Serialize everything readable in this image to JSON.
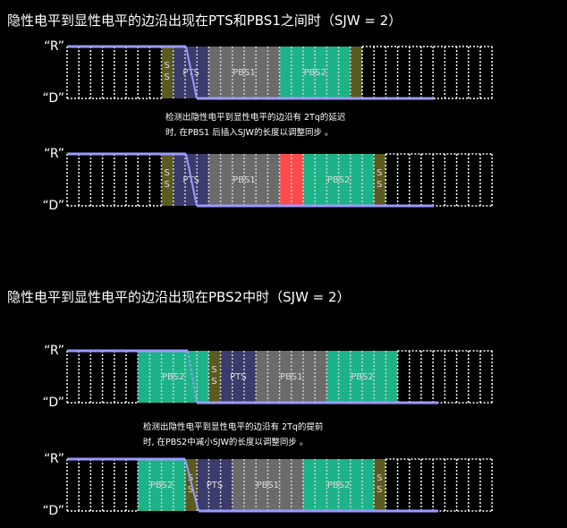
{
  "sections": [
    {
      "title": "隐性电平到显性电平的边沿出现在PTS和PBS1之间时（SJW = 2）",
      "diagrams": [
        {
          "high": "“R”",
          "low": "“D”",
          "labels": [
            "SS",
            "PTS",
            "PBS1",
            "PBS2"
          ]
        },
        {
          "high": "“R”",
          "low": "“D”",
          "labels": [
            "SS",
            "PTS",
            "PBS1",
            "PBS2",
            "SS"
          ]
        }
      ],
      "note": [
        "检测出隐性电平到显性电平的边沿有  2Tq的延迟",
        "时, 在PBS1 后插入SJW的长度以调整同步 。"
      ]
    },
    {
      "title": "隐性电平到显性电平的边沿出现在PBS2中时（SJW = 2）",
      "diagrams": [
        {
          "high": "“R”",
          "low": "“D”",
          "labels": [
            "PBS2",
            "SS",
            "PTS",
            "PBS1",
            "PBS2"
          ]
        },
        {
          "high": "“R”",
          "low": "“D”",
          "labels": [
            "PBS2",
            "SS",
            "PTS",
            "PBS1",
            "PBS2",
            "SS"
          ]
        }
      ],
      "note": [
        "检测出隐性电平到显性电平的边沿有  2Tq的提前",
        "时, 在PBS2中减小SJW的长度以调整同步 。"
      ]
    }
  ]
}
